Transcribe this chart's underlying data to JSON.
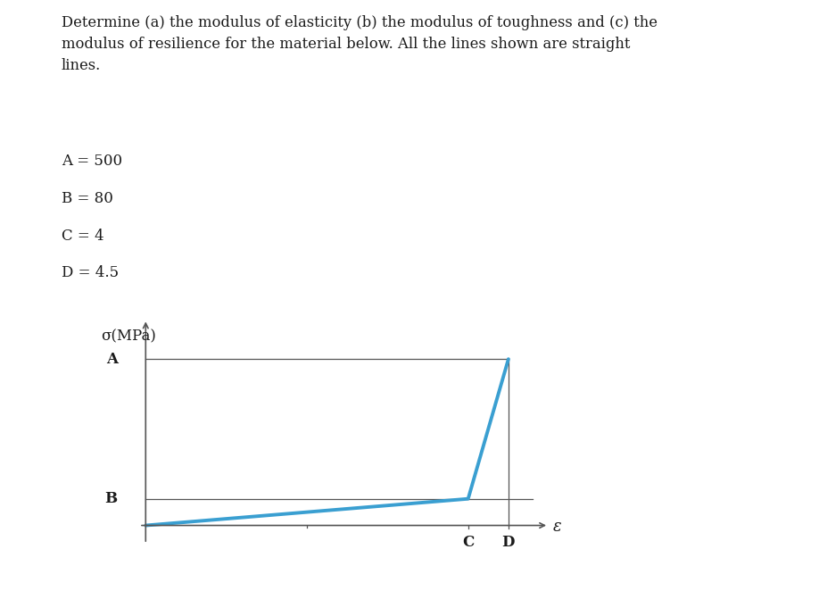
{
  "A": 500,
  "B": 80,
  "C": 4,
  "D": 4.5,
  "title_text": "Determine (a) the modulus of elasticity (b) the modulus of toughness and (c) the\nmodulus of resilience for the material below. All the lines shown are straight\nlines.",
  "variables_text": [
    "A = 500",
    "B = 80",
    "C = 4",
    "D = 4.5"
  ],
  "ylabel": "σ(MPa)",
  "xlabel": "ε",
  "line_color": "#3a9fd1",
  "axis_color": "#555555",
  "text_color": "#1a1a1a",
  "bg_color": "#ffffff",
  "curve_linewidth": 2.8,
  "axis_linewidth": 1.2,
  "ref_linewidth": 0.9
}
